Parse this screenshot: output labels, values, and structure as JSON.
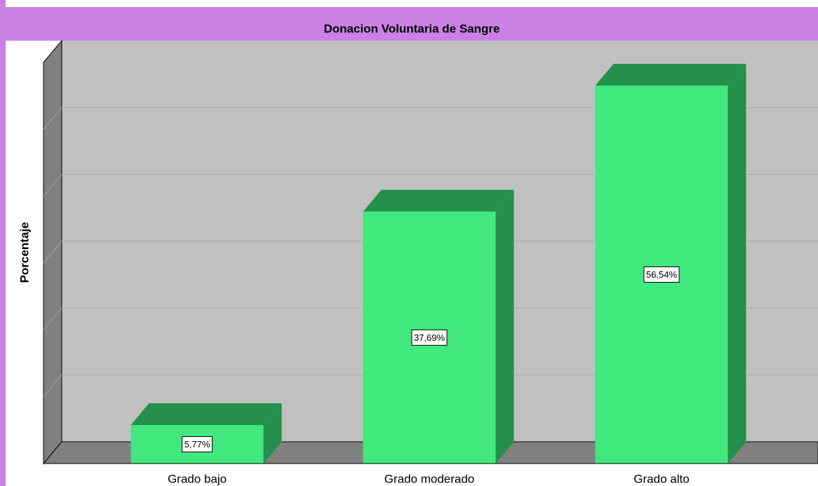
{
  "chart_data": {
    "type": "bar3d",
    "title": "Donacion Voluntaria de Sangre",
    "y_label": "Porcentaje",
    "categories": [
      "Grado bajo",
      "Grado moderado",
      "Grado alto"
    ],
    "values": [
      5.77,
      37.69,
      56.54
    ],
    "value_labels": [
      "5,77%",
      "37,69%",
      "56,54%"
    ],
    "color": "#41e87e",
    "side_color": "#24904c",
    "ylim": [
      0,
      60
    ],
    "yticks": [
      0,
      10,
      20,
      30,
      40,
      50,
      60
    ],
    "grid": true
  }
}
